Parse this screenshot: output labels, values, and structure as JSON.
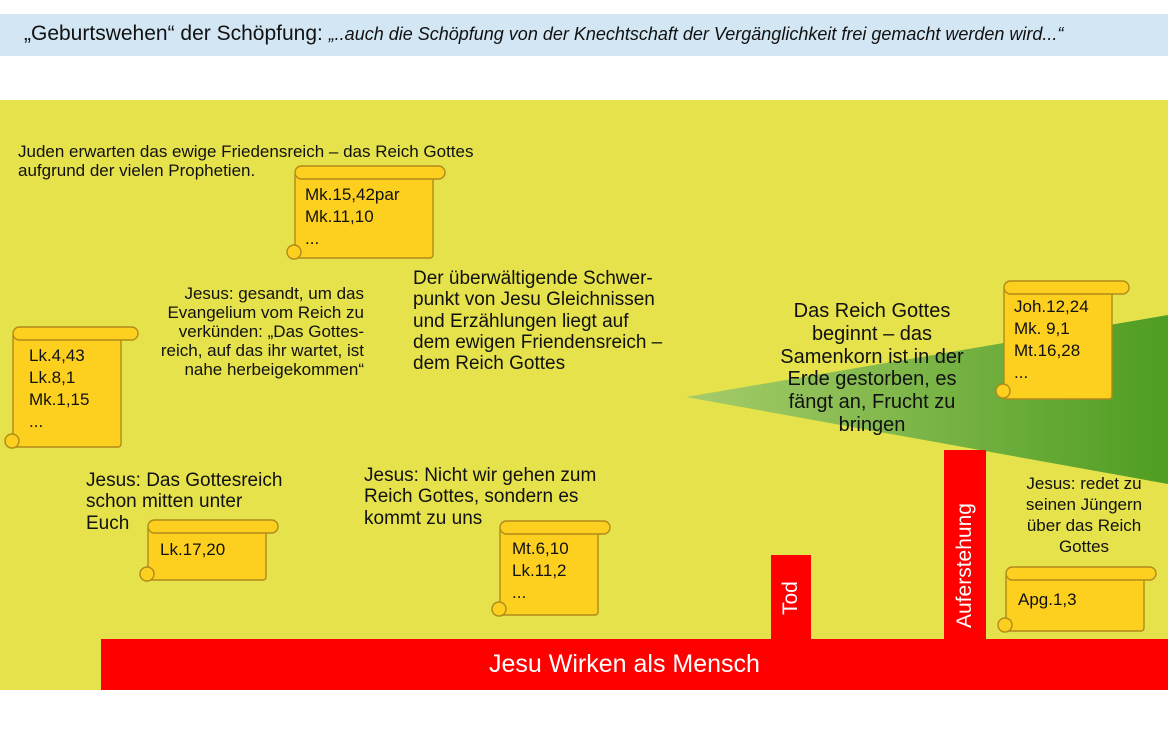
{
  "header": {
    "title": "„Geburtswehen“ der Schöpfung:",
    "quote": "„..auch die Schöpfung von der Knechtschaft der Vergänglichkeit frei gemacht werden wird...“"
  },
  "texts": {
    "juden_l1": "Juden erwarten das ewige Friedensreich – das Reich Gottes",
    "juden_l2": "aufgrund der vielen Prophetien.",
    "gesandt_l1": "Jesus: gesandt, um das",
    "gesandt_l2": "Evangelium vom Reich zu",
    "gesandt_l3": "verkünden: „Das Gottes-",
    "gesandt_l4": "reich, auf das ihr wartet, ist",
    "gesandt_l5": "nahe herbeigekommen“",
    "schwer_l1": "Der überwältigende Schwer-",
    "schwer_l2": "punkt von Jesu Gleichnissen",
    "schwer_l3": "und Erzählungen liegt auf",
    "schwer_l4": "dem ewigen Friendensreich –",
    "schwer_l5": "dem Reich Gottes",
    "reich_l1": "Das Reich Gottes",
    "reich_l2": "beginnt – das",
    "reich_l3": "Samenkorn ist in der",
    "reich_l4": "Erde gestorben, es",
    "reich_l5": "fängt an, Frucht zu",
    "reich_l6": "bringen",
    "mitten_l1": "Jesus: Das Gottesreich",
    "mitten_l2": "schon mitten unter",
    "mitten_l3": "Euch",
    "nicht_l1": "Jesus: Nicht wir gehen zum",
    "nicht_l2": "Reich Gottes, sondern es",
    "nicht_l3": "kommt zu uns",
    "redet_l1": "Jesus: redet zu",
    "redet_l2": "seinen Jüngern",
    "redet_l3": "über das Reich",
    "redet_l4": "Gottes"
  },
  "scrolls": {
    "mk": [
      "Mk.15,42par",
      "Mk.11,10",
      "..."
    ],
    "lk": [
      "Lk.4,43",
      "Lk.8,1",
      "Mk.1,15",
      "..."
    ],
    "joh": [
      "Joh.12,24",
      "Mk. 9,1",
      "Mt.16,28",
      "..."
    ],
    "lk17": [
      "Lk.17,20"
    ],
    "mt6": [
      "Mt.6,10",
      "Lk.11,2",
      "..."
    ],
    "apg": [
      "Apg.1,3"
    ]
  },
  "bars": {
    "main": "Jesu Wirken als Mensch",
    "tod": "Tod",
    "auferstehung": "Auferstehung"
  },
  "colors": {
    "background": "#e6e24c",
    "bar": "#ff0000",
    "scroll": "#fdd020",
    "wedge_start": "#a6cc6a",
    "wedge_end": "#4f9d22"
  }
}
